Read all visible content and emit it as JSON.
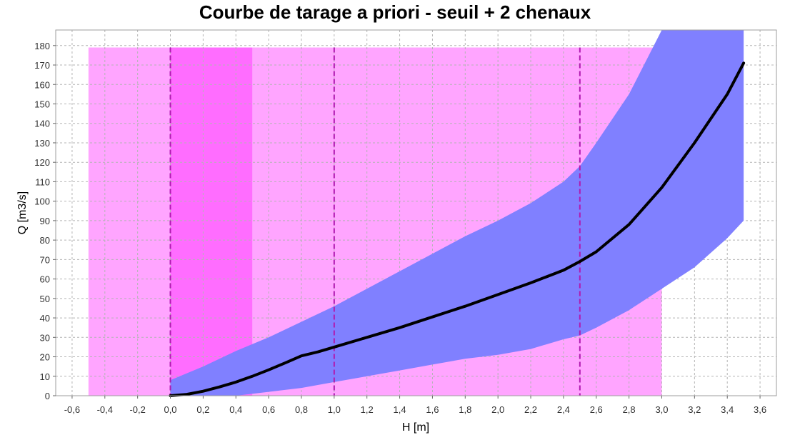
{
  "chart_data": {
    "type": "line",
    "title": "Courbe de tarage a priori - seuil + 2 chenaux",
    "xlabel": "H [m]",
    "ylabel": "Q [m3/s]",
    "xlim": [
      -0.7,
      3.7
    ],
    "ylim": [
      0,
      188
    ],
    "xticks": [
      -0.6,
      -0.4,
      -0.2,
      0.0,
      0.2,
      0.4,
      0.6,
      0.8,
      1.0,
      1.2,
      1.4,
      1.6,
      1.8,
      2.0,
      2.2,
      2.4,
      2.6,
      2.8,
      3.0,
      3.2,
      3.4,
      3.6
    ],
    "xtick_labels": [
      "-0,6",
      "-0,4",
      "-0,2",
      "0,0",
      "0,2",
      "0,4",
      "0,6",
      "0,8",
      "1,0",
      "1,2",
      "1,4",
      "1,6",
      "1,8",
      "2,0",
      "2,2",
      "2,4",
      "2,6",
      "2,8",
      "3,0",
      "3,2",
      "3,4",
      "3,6"
    ],
    "yticks": [
      0,
      10,
      20,
      30,
      40,
      50,
      60,
      70,
      80,
      90,
      100,
      110,
      120,
      130,
      140,
      150,
      160,
      170,
      180
    ],
    "ytick_labels": [
      "0",
      "10",
      "20",
      "30",
      "40",
      "50",
      "60",
      "70",
      "80",
      "90",
      "100",
      "110",
      "120",
      "130",
      "140",
      "150",
      "160",
      "170",
      "180"
    ],
    "grid": true,
    "colors": {
      "prior_range": "#ffa5ff",
      "prior_range_dark": "#ff6dff",
      "band": "#8080ff",
      "curve": "#000000",
      "breakpoints": "#b01ab0",
      "grid": "#b4b4b4"
    },
    "prior_rectangles": [
      {
        "x0": -0.5,
        "x1": 3.0,
        "y0": 0,
        "y1": 179
      },
      {
        "x0": 0.0,
        "x1": 0.5,
        "y0": 0,
        "y1": 179,
        "dark": true
      }
    ],
    "breakpoint_lines": [
      0.0,
      1.0,
      2.5
    ],
    "band": {
      "x": [
        0.0,
        0.2,
        0.4,
        0.6,
        0.8,
        1.0,
        1.2,
        1.4,
        1.6,
        1.8,
        2.0,
        2.2,
        2.4,
        2.5,
        2.6,
        2.8,
        3.0,
        3.2,
        3.4,
        3.5
      ],
      "upper": [
        8,
        15,
        23,
        30,
        38,
        46,
        55,
        64,
        73,
        82,
        90,
        99,
        110,
        118,
        130,
        155,
        188,
        188,
        188,
        188
      ],
      "lower": [
        0,
        0,
        0,
        2,
        4,
        7,
        10,
        13,
        16,
        19,
        21,
        24,
        29,
        31,
        35,
        44,
        55,
        66,
        81,
        90
      ]
    },
    "curve": {
      "x": [
        0.0,
        0.1,
        0.2,
        0.3,
        0.4,
        0.5,
        0.6,
        0.7,
        0.8,
        0.9,
        1.0,
        1.2,
        1.4,
        1.6,
        1.8,
        2.0,
        2.2,
        2.4,
        2.5,
        2.6,
        2.8,
        3.0,
        3.2,
        3.4,
        3.5
      ],
      "y": [
        0,
        0.7,
        2.3,
        4.5,
        7,
        10,
        13.3,
        16.8,
        20.5,
        22.5,
        25,
        30,
        35,
        40.5,
        46,
        52,
        58,
        64.5,
        69,
        74,
        88,
        107,
        130,
        155,
        171
      ]
    }
  }
}
